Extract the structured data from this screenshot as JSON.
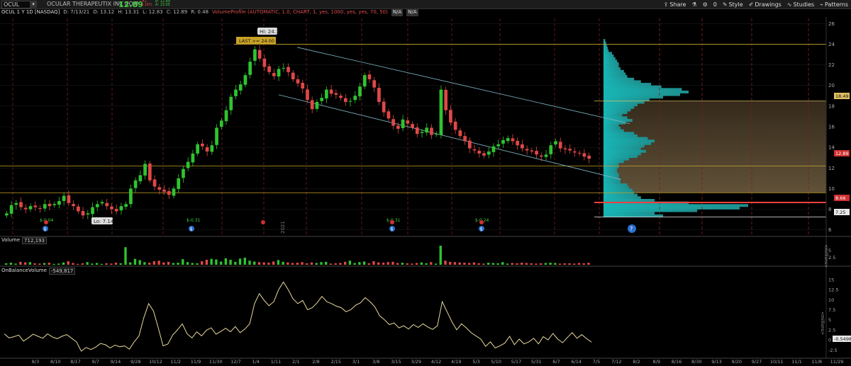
{
  "toolbar": {
    "symbol": "OCUL",
    "company": "OCULAR THERAPEUTIX INC COM",
    "last_price": "12.89",
    "change": "-.42",
    "change_pct": "-3.16%",
    "bid": "B: 12.89",
    "ask": "A: 13.05",
    "share_label": "Share",
    "count": "0",
    "style_label": "Style",
    "drawings_label": "Drawings",
    "studies_label": "Studies",
    "patterns_label": "Patterns"
  },
  "header": {
    "symbol_desc": "OCUL 1 Y 1D [NASDAQ]",
    "date": "D: 7/13/21",
    "open": "O: 13.12",
    "high": "H: 13.31",
    "low": "L: 12.83",
    "close": "C: 12.89",
    "range": "R: 0.48",
    "volume_profile": "VolumeProfile (AUTOMATIC, 1.0, CHART, 1, yes, 1000, yes, yes, 70, 50)",
    "na1": "N/A",
    "na2": "N/A"
  },
  "price_panel": {
    "high_label": "Hi: 24.3",
    "low_label": "Lo: 7.14",
    "last_alert": "LAST >= 24.00",
    "year_label": "2021",
    "earnings_labels": [
      "$-0.04",
      "$-0.31",
      "$-0.31",
      "$-0.24"
    ],
    "right_labels": {
      "poc_upper": "18.49",
      "last": "12.89",
      "lower_red": "8.66",
      "lower_white": "7.25"
    },
    "vol_profile_help": "?"
  },
  "volume_panel": {
    "label": "Volume",
    "value": "712,193",
    "unit": "<millions>"
  },
  "obv_panel": {
    "label": "OnBalanceVolume",
    "value": "-549,817",
    "unit": "<millions>",
    "last_tag": "-0.5498"
  },
  "chart_data": [
    {
      "type": "candlestick",
      "title": "OCUL 1 Y 1D [NASDAQ]",
      "ylim": [
        5.5,
        26.5
      ],
      "y_ticks": [
        6,
        8,
        10,
        12,
        14,
        16,
        18,
        20,
        22,
        24,
        26
      ],
      "x_ticks": [
        "8/3",
        "8/10",
        "8/17",
        "9/7",
        "9/14",
        "9/28",
        "10/12",
        "11/2",
        "11/9",
        "11/30",
        "12/7",
        "1/4",
        "1/11",
        "2/1",
        "2/8",
        "2/15",
        "3/1",
        "3/8",
        "3/15",
        "3/29",
        "4/12",
        "4/19",
        "5/3",
        "5/10",
        "5/17",
        "5/31",
        "6/7",
        "6/14",
        "7/5",
        "7/12",
        "8/2",
        "8/9",
        "8/16",
        "8/30",
        "9/13",
        "9/20",
        "9/27",
        "10/11",
        "11/1",
        "11/8",
        "11/29"
      ],
      "close_path": [
        7.6,
        8.4,
        8.6,
        8.2,
        8.0,
        8.3,
        8.2,
        8.1,
        8.5,
        8.3,
        8.5,
        8.8,
        9.3,
        8.6,
        8.3,
        7.8,
        7.4,
        7.6,
        8.2,
        8.5,
        8.7,
        8.3,
        8.0,
        7.8,
        8.3,
        8.5,
        10.0,
        10.8,
        11.3,
        12.4,
        10.8,
        10.2,
        9.9,
        9.7,
        9.4,
        10.0,
        11.0,
        11.9,
        12.6,
        13.4,
        14.3,
        14.1,
        13.6,
        14.2,
        15.9,
        16.6,
        17.6,
        18.9,
        19.6,
        20.1,
        21.0,
        22.3,
        23.5,
        22.6,
        21.8,
        21.3,
        20.9,
        21.6,
        21.7,
        21.3,
        20.6,
        20.2,
        19.7,
        18.6,
        17.7,
        18.4,
        18.8,
        19.6,
        19.2,
        19.1,
        18.8,
        18.4,
        18.5,
        19.0,
        19.9,
        21.0,
        20.6,
        19.8,
        18.4,
        17.4,
        16.8,
        16.1,
        15.8,
        16.7,
        16.3,
        15.9,
        15.3,
        15.5,
        15.9,
        15.2,
        15.3,
        19.6,
        17.6,
        16.4,
        15.7,
        15.1,
        14.6,
        13.9,
        13.7,
        13.4,
        13.2,
        13.6,
        14.1,
        14.3,
        14.7,
        14.9,
        14.6,
        14.2,
        13.9,
        13.7,
        13.6,
        13.3,
        13.1,
        13.3,
        14.2,
        14.6,
        13.9,
        13.8,
        13.7,
        13.5,
        13.4,
        13.1,
        12.9
      ],
      "channel": {
        "upper": [
          [
            11,
            23.7
          ],
          [
            68,
            16.3
          ]
        ],
        "lower": [
          [
            11,
            19.1
          ],
          [
            68,
            11.4
          ]
        ]
      },
      "horizontal_levels": [
        24.0,
        18.49,
        12.2,
        9.6,
        8.66,
        7.25
      ],
      "volume_profile": {
        "price_bins": [
          7.25,
          7.5,
          7.75,
          8.0,
          8.25,
          8.5,
          8.75,
          9.0,
          9.25,
          9.5,
          9.75,
          10.0,
          10.25,
          10.5,
          10.75,
          11.0,
          11.25,
          11.5,
          11.75,
          12.0,
          12.25,
          12.5,
          12.75,
          13.0,
          13.25,
          13.5,
          13.75,
          14.0,
          14.25,
          14.5,
          14.75,
          15.0,
          15.25,
          15.5,
          15.75,
          16.0,
          16.25,
          16.5,
          16.75,
          17.0,
          17.25,
          17.5,
          17.75,
          18.0,
          18.25,
          18.5,
          18.75,
          19.0,
          19.25,
          19.5,
          19.75,
          20.0,
          20.25,
          20.5,
          20.75,
          21.0,
          21.25,
          21.5,
          21.75,
          22.0,
          22.25,
          22.5,
          22.75,
          23.0,
          23.25,
          23.5,
          23.75,
          24.0,
          24.25
        ],
        "volumes": [
          0.35,
          0.3,
          0.55,
          0.8,
          0.85,
          0.5,
          0.3,
          0.22,
          0.2,
          0.18,
          0.17,
          0.15,
          0.14,
          0.1,
          0.1,
          0.09,
          0.09,
          0.08,
          0.08,
          0.09,
          0.09,
          0.12,
          0.15,
          0.2,
          0.22,
          0.25,
          0.22,
          0.24,
          0.28,
          0.3,
          0.26,
          0.2,
          0.18,
          0.12,
          0.1,
          0.09,
          0.13,
          0.17,
          0.14,
          0.11,
          0.14,
          0.16,
          0.18,
          0.2,
          0.24,
          0.27,
          0.35,
          0.45,
          0.5,
          0.46,
          0.34,
          0.28,
          0.22,
          0.18,
          0.14,
          0.13,
          0.12,
          0.1,
          0.09,
          0.09,
          0.08,
          0.07,
          0.06,
          0.05,
          0.03,
          0.025,
          0.02,
          0.015,
          0.01
        ]
      }
    },
    {
      "type": "bar",
      "title": "Volume",
      "ylim": [
        0,
        7
      ],
      "y_ticks": [
        2.5,
        5
      ],
      "values_millions": [
        0.5,
        0.7,
        0.4,
        1.0,
        0.8,
        0.9,
        0.5,
        0.4,
        0.6,
        0.7,
        0.3,
        0.4,
        0.8,
        1.2,
        0.6,
        0.3,
        0.5,
        0.9,
        0.4,
        0.6,
        0.3,
        0.5,
        0.4,
        0.7,
        0.5,
        6.0,
        0.8,
        2.0,
        1.6,
        0.9,
        0.7,
        1.2,
        1.4,
        0.8,
        1.0,
        0.6,
        0.7,
        1.9,
        0.9,
        0.6,
        0.5,
        1.2,
        1.7,
        2.0,
        1.8,
        1.1,
        2.2,
        1.7,
        1.0,
        2.1,
        2.4,
        1.4,
        1.1,
        0.9,
        0.8,
        0.7,
        1.1,
        1.6,
        1.0,
        0.8,
        0.6,
        0.7,
        0.9,
        0.5,
        0.8,
        0.6,
        0.9,
        1.0,
        0.4,
        0.5,
        0.6,
        1.0,
        1.4,
        0.6,
        0.9,
        1.1,
        0.5,
        1.2,
        0.8,
        0.7,
        0.9,
        1.0,
        0.6,
        0.7,
        0.5,
        0.4,
        0.6,
        0.8,
        0.5,
        0.9,
        0.4,
        6.5,
        1.4,
        1.0,
        0.9,
        0.8,
        0.7,
        0.6,
        0.8,
        0.5,
        0.4,
        0.7,
        0.6,
        0.5,
        0.9,
        0.4,
        0.6,
        0.5,
        0.7,
        0.6,
        0.5,
        0.4,
        0.5,
        0.6,
        0.7,
        0.6,
        0.4,
        0.5,
        0.5,
        0.4,
        0.6,
        0.5,
        0.7
      ]
    },
    {
      "type": "line",
      "title": "OnBalanceVolume",
      "ylim": [
        -3.5,
        15.5
      ],
      "y_ticks": [
        -2.5,
        0,
        2.5,
        5,
        7.5,
        10,
        12.5,
        15
      ],
      "values_millions": [
        1.5,
        0.5,
        0.8,
        1.2,
        -0.3,
        0.5,
        1.4,
        0.9,
        0.4,
        1.5,
        0.7,
        0.3,
        0.9,
        1.3,
        0.4,
        -0.5,
        -2.8,
        -1.9,
        -2.4,
        -1.8,
        -0.9,
        -1.2,
        -2.0,
        -1.3,
        -1.7,
        -1.5,
        -2.3,
        -0.5,
        1.0,
        5.5,
        9.0,
        7.2,
        3.0,
        -1.5,
        -1.0,
        1.2,
        2.5,
        4.0,
        1.5,
        0.5,
        2.0,
        1.0,
        2.4,
        3.0,
        1.4,
        2.1,
        2.9,
        2.0,
        3.3,
        1.8,
        2.7,
        4.0,
        9.0,
        11.5,
        9.8,
        8.5,
        9.5,
        12.5,
        14.4,
        12.5,
        10.2,
        9.0,
        9.8,
        7.5,
        8.0,
        9.2,
        10.8,
        9.5,
        9.0,
        8.4,
        8.0,
        7.0,
        7.5,
        8.6,
        9.2,
        10.5,
        9.5,
        8.2,
        6.0,
        5.0,
        3.8,
        4.2,
        3.0,
        3.5,
        2.7,
        3.8,
        3.1,
        4.0,
        3.2,
        2.6,
        3.5,
        9.5,
        7.0,
        4.5,
        2.5,
        4.0,
        3.0,
        1.8,
        1.0,
        0.2,
        -1.6,
        -0.5,
        -2.0,
        -1.5,
        -0.8,
        0.9,
        -1.2,
        0.2,
        -1.0,
        -0.5,
        0.4,
        -1.0,
        0.8,
        0.0,
        1.6,
        0.2,
        -0.7,
        0.6,
        1.8,
        0.4,
        1.3,
        0.3,
        -0.55
      ]
    }
  ]
}
